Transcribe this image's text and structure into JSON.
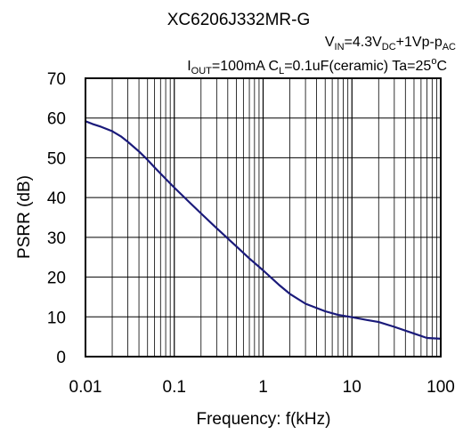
{
  "chart_data": {
    "type": "line",
    "title": "XC6206J332MR-G",
    "condition_vin": {
      "parts": [
        {
          "text": "V",
          "sub": false
        },
        {
          "text": "IN",
          "sub": true
        },
        {
          "text": "=4.3V",
          "sub": false
        },
        {
          "text": "DC",
          "sub": true
        },
        {
          "text": "+1Vp-p",
          "sub": false
        },
        {
          "text": "AC",
          "sub": true
        }
      ]
    },
    "condition_load": {
      "parts": [
        {
          "text": "I",
          "sub": false
        },
        {
          "text": "OUT",
          "sub": true
        },
        {
          "text": "=100mA  C",
          "sub": false
        },
        {
          "text": "L",
          "sub": true
        },
        {
          "text": "=0.1uF(ceramic) Ta=25",
          "sub": false
        },
        {
          "text": "o",
          "sup": true
        },
        {
          "text": "C",
          "sub": false
        }
      ]
    },
    "xlabel": "Frequency: f(kHz)",
    "ylabel": "PSRR (dB)",
    "x_scale": "log",
    "xlim": [
      0.01,
      100
    ],
    "ylim": [
      0,
      70
    ],
    "x_ticks": [
      0.01,
      0.1,
      1,
      10,
      100
    ],
    "x_tick_labels": [
      "0.01",
      "0.1",
      "1",
      "10",
      "100"
    ],
    "y_ticks": [
      0,
      10,
      20,
      30,
      40,
      50,
      60,
      70
    ],
    "y_tick_labels": [
      "0",
      "10",
      "20",
      "30",
      "40",
      "50",
      "60",
      "70"
    ],
    "grid": true,
    "series": [
      {
        "color": "#1a1a7a",
        "x": [
          0.01,
          0.012,
          0.015,
          0.02,
          0.025,
          0.03,
          0.04,
          0.05,
          0.06,
          0.08,
          0.1,
          0.15,
          0.2,
          0.3,
          0.5,
          0.7,
          1,
          1.5,
          2,
          3,
          5,
          7,
          10,
          15,
          20,
          30,
          50,
          70,
          100
        ],
        "y": [
          59.2,
          58.5,
          57.8,
          56.7,
          55.4,
          54.0,
          51.6,
          49.5,
          47.6,
          44.7,
          42.5,
          38.7,
          36.0,
          32.3,
          27.7,
          24.7,
          21.7,
          18.1,
          15.8,
          13.3,
          11.4,
          10.5,
          9.9,
          9.2,
          8.7,
          7.5,
          5.8,
          4.7,
          4.5
        ]
      }
    ]
  }
}
